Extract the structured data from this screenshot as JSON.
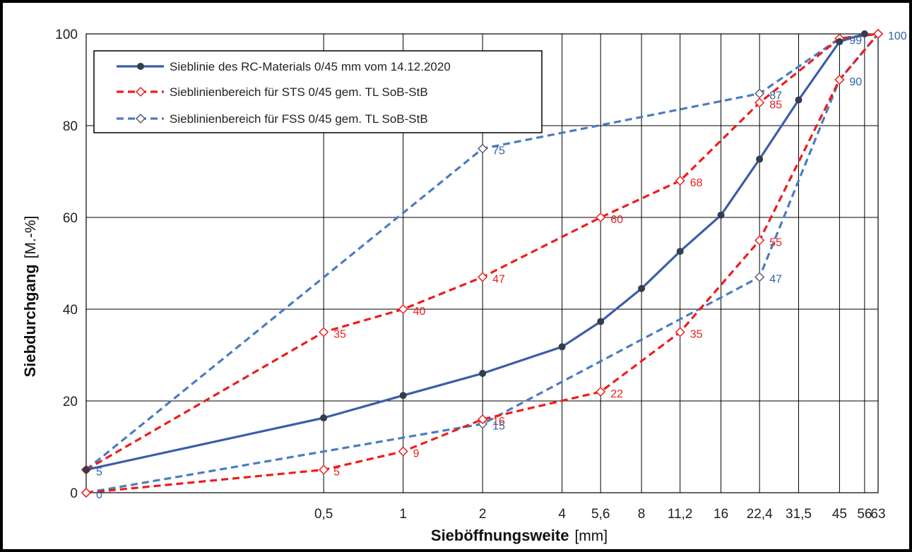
{
  "chart_data": {
    "type": "line",
    "xlabel": "Sieböffnungsweite",
    "xlabel_unit": "[mm]",
    "ylabel": "Siebdurchgang",
    "ylabel_unit": "[M.-%]",
    "ylim": [
      0,
      100
    ],
    "yticks": [
      "0",
      "20",
      "40",
      "60",
      "80",
      "100"
    ],
    "x_scale": "log",
    "xticks": [
      {
        "value": 0.5,
        "label": "0,5"
      },
      {
        "value": 1,
        "label": "1"
      },
      {
        "value": 2,
        "label": "2"
      },
      {
        "value": 4,
        "label": "4"
      },
      {
        "value": 5.6,
        "label": "5,6"
      },
      {
        "value": 8,
        "label": "8"
      },
      {
        "value": 11.2,
        "label": "11,2"
      },
      {
        "value": 16,
        "label": "16"
      },
      {
        "value": 22.4,
        "label": "22,4"
      },
      {
        "value": 31.5,
        "label": "31,5"
      },
      {
        "value": 45,
        "label": "45"
      },
      {
        "value": 56,
        "label": "56"
      },
      {
        "value": 63,
        "label": "63"
      }
    ],
    "grid": true,
    "legend_position": "top-left",
    "series": [
      {
        "name": "Sieblinie des RC-Materials 0/45 mm vom 14.12.2020",
        "color": "#3a5ea8",
        "style": "solid",
        "marker": "filled-circle",
        "x": [
          0.063,
          0.5,
          1,
          2,
          4,
          5.6,
          8,
          11.2,
          16,
          22.4,
          31.5,
          45,
          56
        ],
        "y": [
          5,
          16.3,
          21.2,
          26,
          31.8,
          37.3,
          44.5,
          52.6,
          60.5,
          72.7,
          85.6,
          98.3,
          100
        ],
        "labels": []
      },
      {
        "name": "Sieblinienbereich für STS 0/45 gem. TL SoB-StB",
        "color": "#ee1c1c",
        "style": "dashed",
        "marker": "open-diamond",
        "label_color": "#ee1c1c",
        "lines": [
          {
            "x": [
              0.063,
              0.5,
              1,
              2,
              5.6,
              11.2,
              22.4,
              45,
              63
            ],
            "y": [
              5,
              35,
              40,
              47,
              60,
              68,
              85,
              99,
              100
            ]
          },
          {
            "x": [
              0.063,
              0.5,
              1,
              2,
              5.6,
              11.2,
              22.4,
              45,
              63
            ],
            "y": [
              0,
              5,
              9,
              16,
              22,
              35,
              55,
              90,
              100
            ]
          }
        ],
        "labels": [
          {
            "x": 0.5,
            "y": 35,
            "text": "35"
          },
          {
            "x": 1,
            "y": 40,
            "text": "40"
          },
          {
            "x": 2,
            "y": 47,
            "text": "47"
          },
          {
            "x": 5.6,
            "y": 60,
            "text": "60"
          },
          {
            "x": 11.2,
            "y": 68,
            "text": "68"
          },
          {
            "x": 22.4,
            "y": 85,
            "text": "85"
          },
          {
            "x": 0.5,
            "y": 5,
            "text": "5"
          },
          {
            "x": 1,
            "y": 9,
            "text": "9"
          },
          {
            "x": 2,
            "y": 16,
            "text": "16"
          },
          {
            "x": 5.6,
            "y": 22,
            "text": "22"
          },
          {
            "x": 11.2,
            "y": 35,
            "text": "35"
          },
          {
            "x": 22.4,
            "y": 55,
            "text": "55"
          }
        ]
      },
      {
        "name": "Sieblinienbereich für FSS 0/45 gem. TL SoB-StB",
        "color": "#4a7cc0",
        "style": "dashed",
        "marker": "open-diamond",
        "label_color": "#2e63a8",
        "lines": [
          {
            "x": [
              0.063,
              2,
              22.4,
              45,
              63
            ],
            "y": [
              5,
              75,
              87,
              99,
              100
            ]
          },
          {
            "x": [
              0.063,
              2,
              22.4,
              45,
              63
            ],
            "y": [
              0,
              15,
              47,
              90,
              100
            ]
          }
        ],
        "labels": [
          {
            "x": 0.063,
            "y": 5,
            "text": "5"
          },
          {
            "x": 0.063,
            "y": 0,
            "text": "0"
          },
          {
            "x": 2,
            "y": 75,
            "text": "75"
          },
          {
            "x": 2,
            "y": 15,
            "text": "15"
          },
          {
            "x": 22.4,
            "y": 87,
            "text": "87"
          },
          {
            "x": 22.4,
            "y": 47,
            "text": "47"
          },
          {
            "x": 45,
            "y": 99,
            "text": "99"
          },
          {
            "x": 45,
            "y": 90,
            "text": "90"
          },
          {
            "x": 63,
            "y": 100,
            "text": "100"
          }
        ]
      }
    ]
  }
}
